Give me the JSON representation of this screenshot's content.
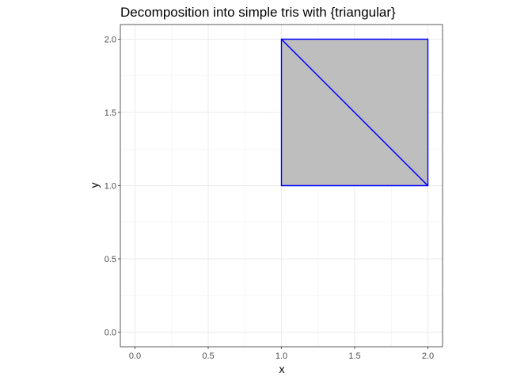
{
  "chart_data": {
    "type": "polygon",
    "title": "Decomposition into simple tris with {triangular}",
    "xlabel": "x",
    "ylabel": "y",
    "xlim": [
      -0.1,
      2.1
    ],
    "ylim": [
      -0.1,
      2.1
    ],
    "x_ticks": [
      0.0,
      0.5,
      1.0,
      1.5,
      2.0
    ],
    "y_ticks": [
      0.0,
      0.5,
      1.0,
      1.5,
      2.0
    ],
    "x_tick_labels": [
      "0.0",
      "0.5",
      "1.0",
      "1.5",
      "2.0"
    ],
    "y_tick_labels": [
      "0.0",
      "0.5",
      "1.0",
      "1.5",
      "2.0"
    ],
    "grid": true,
    "fill_color": "#bebebe",
    "edge_color": "#0000ff",
    "triangles": [
      [
        [
          1,
          1
        ],
        [
          2,
          1
        ],
        [
          1,
          2
        ]
      ],
      [
        [
          2,
          1
        ],
        [
          2,
          2
        ],
        [
          1,
          2
        ]
      ]
    ]
  }
}
